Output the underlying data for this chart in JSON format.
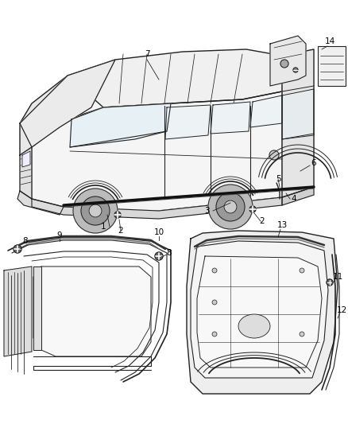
{
  "background_color": "#ffffff",
  "line_color": "#222222",
  "label_color": "#000000",
  "figsize": [
    4.38,
    5.33
  ],
  "dpi": 100
}
